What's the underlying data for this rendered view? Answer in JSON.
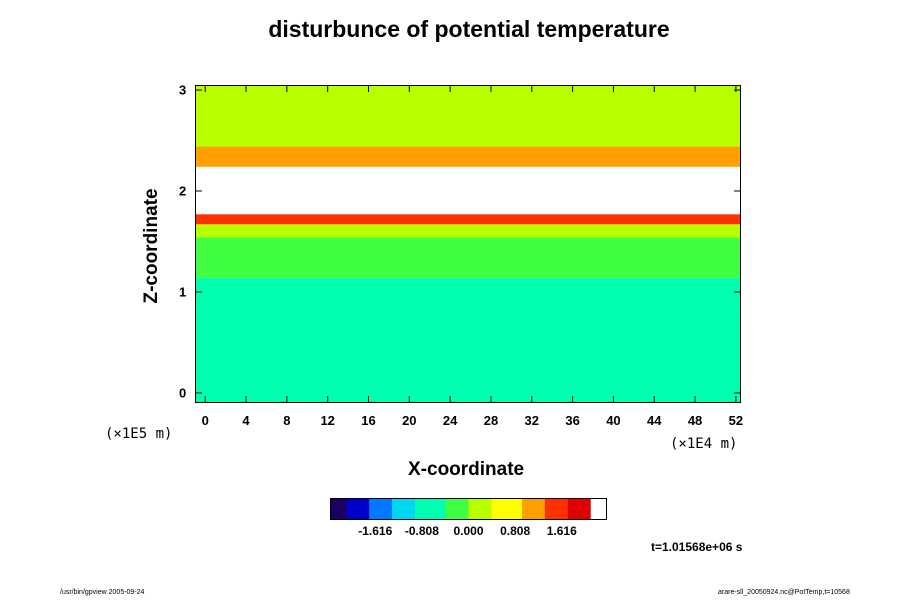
{
  "title": "disturbunce of potential temperature",
  "chart_data": {
    "type": "heatmap",
    "title": "disturbunce of potential temperature",
    "xlabel": "X-coordinate",
    "ylabel": "Z-coordinate",
    "x_unit": "(×1E4 m)",
    "y_unit": "(×1E5 m)",
    "xlim": [
      -1,
      52.5
    ],
    "ylim": [
      -0.1,
      3.05
    ],
    "x_ticks": [
      "0",
      "4",
      "8",
      "12",
      "16",
      "20",
      "24",
      "28",
      "32",
      "36",
      "40",
      "44",
      "48",
      "52"
    ],
    "y_ticks": [
      "0",
      "1",
      "2",
      "3"
    ],
    "colorbar_ticks": [
      "-1.616",
      "-0.808",
      "0.000",
      "0.808",
      "1.616"
    ],
    "colorbar_range": [
      -2.4,
      2.4
    ],
    "time_label": "t=1.01568e+06 s",
    "bands": [
      {
        "z_from": -0.1,
        "z_to": 0.88,
        "value": -0.5
      },
      {
        "z_from": 0.88,
        "z_to": 1.15,
        "value": -0.65
      },
      {
        "z_from": 1.15,
        "z_to": 1.55,
        "value": -0.2
      },
      {
        "z_from": 1.55,
        "z_to": 1.68,
        "value": 0.15
      },
      {
        "z_from": 1.68,
        "z_to": 1.78,
        "value": 1.5
      },
      {
        "z_from": 1.78,
        "z_to": 2.25,
        "value": 3.0
      },
      {
        "z_from": 2.25,
        "z_to": 2.45,
        "value": 1.2
      },
      {
        "z_from": 2.45,
        "z_to": 3.05,
        "value": 0.3
      }
    ],
    "colors": {
      "colormap": [
        "#1a0060",
        "#0000c8",
        "#0078ff",
        "#00d7f0",
        "#00ffb0",
        "#40ff40",
        "#b8ff00",
        "#ffff00",
        "#ffa000",
        "#ff3000",
        "#e00000",
        "#ffffff"
      ]
    }
  },
  "footer": {
    "left": "/usr/bin/gpview 2005-09-24",
    "right": "arare-sll_20050924.nc@PotTemp,t=10568"
  }
}
